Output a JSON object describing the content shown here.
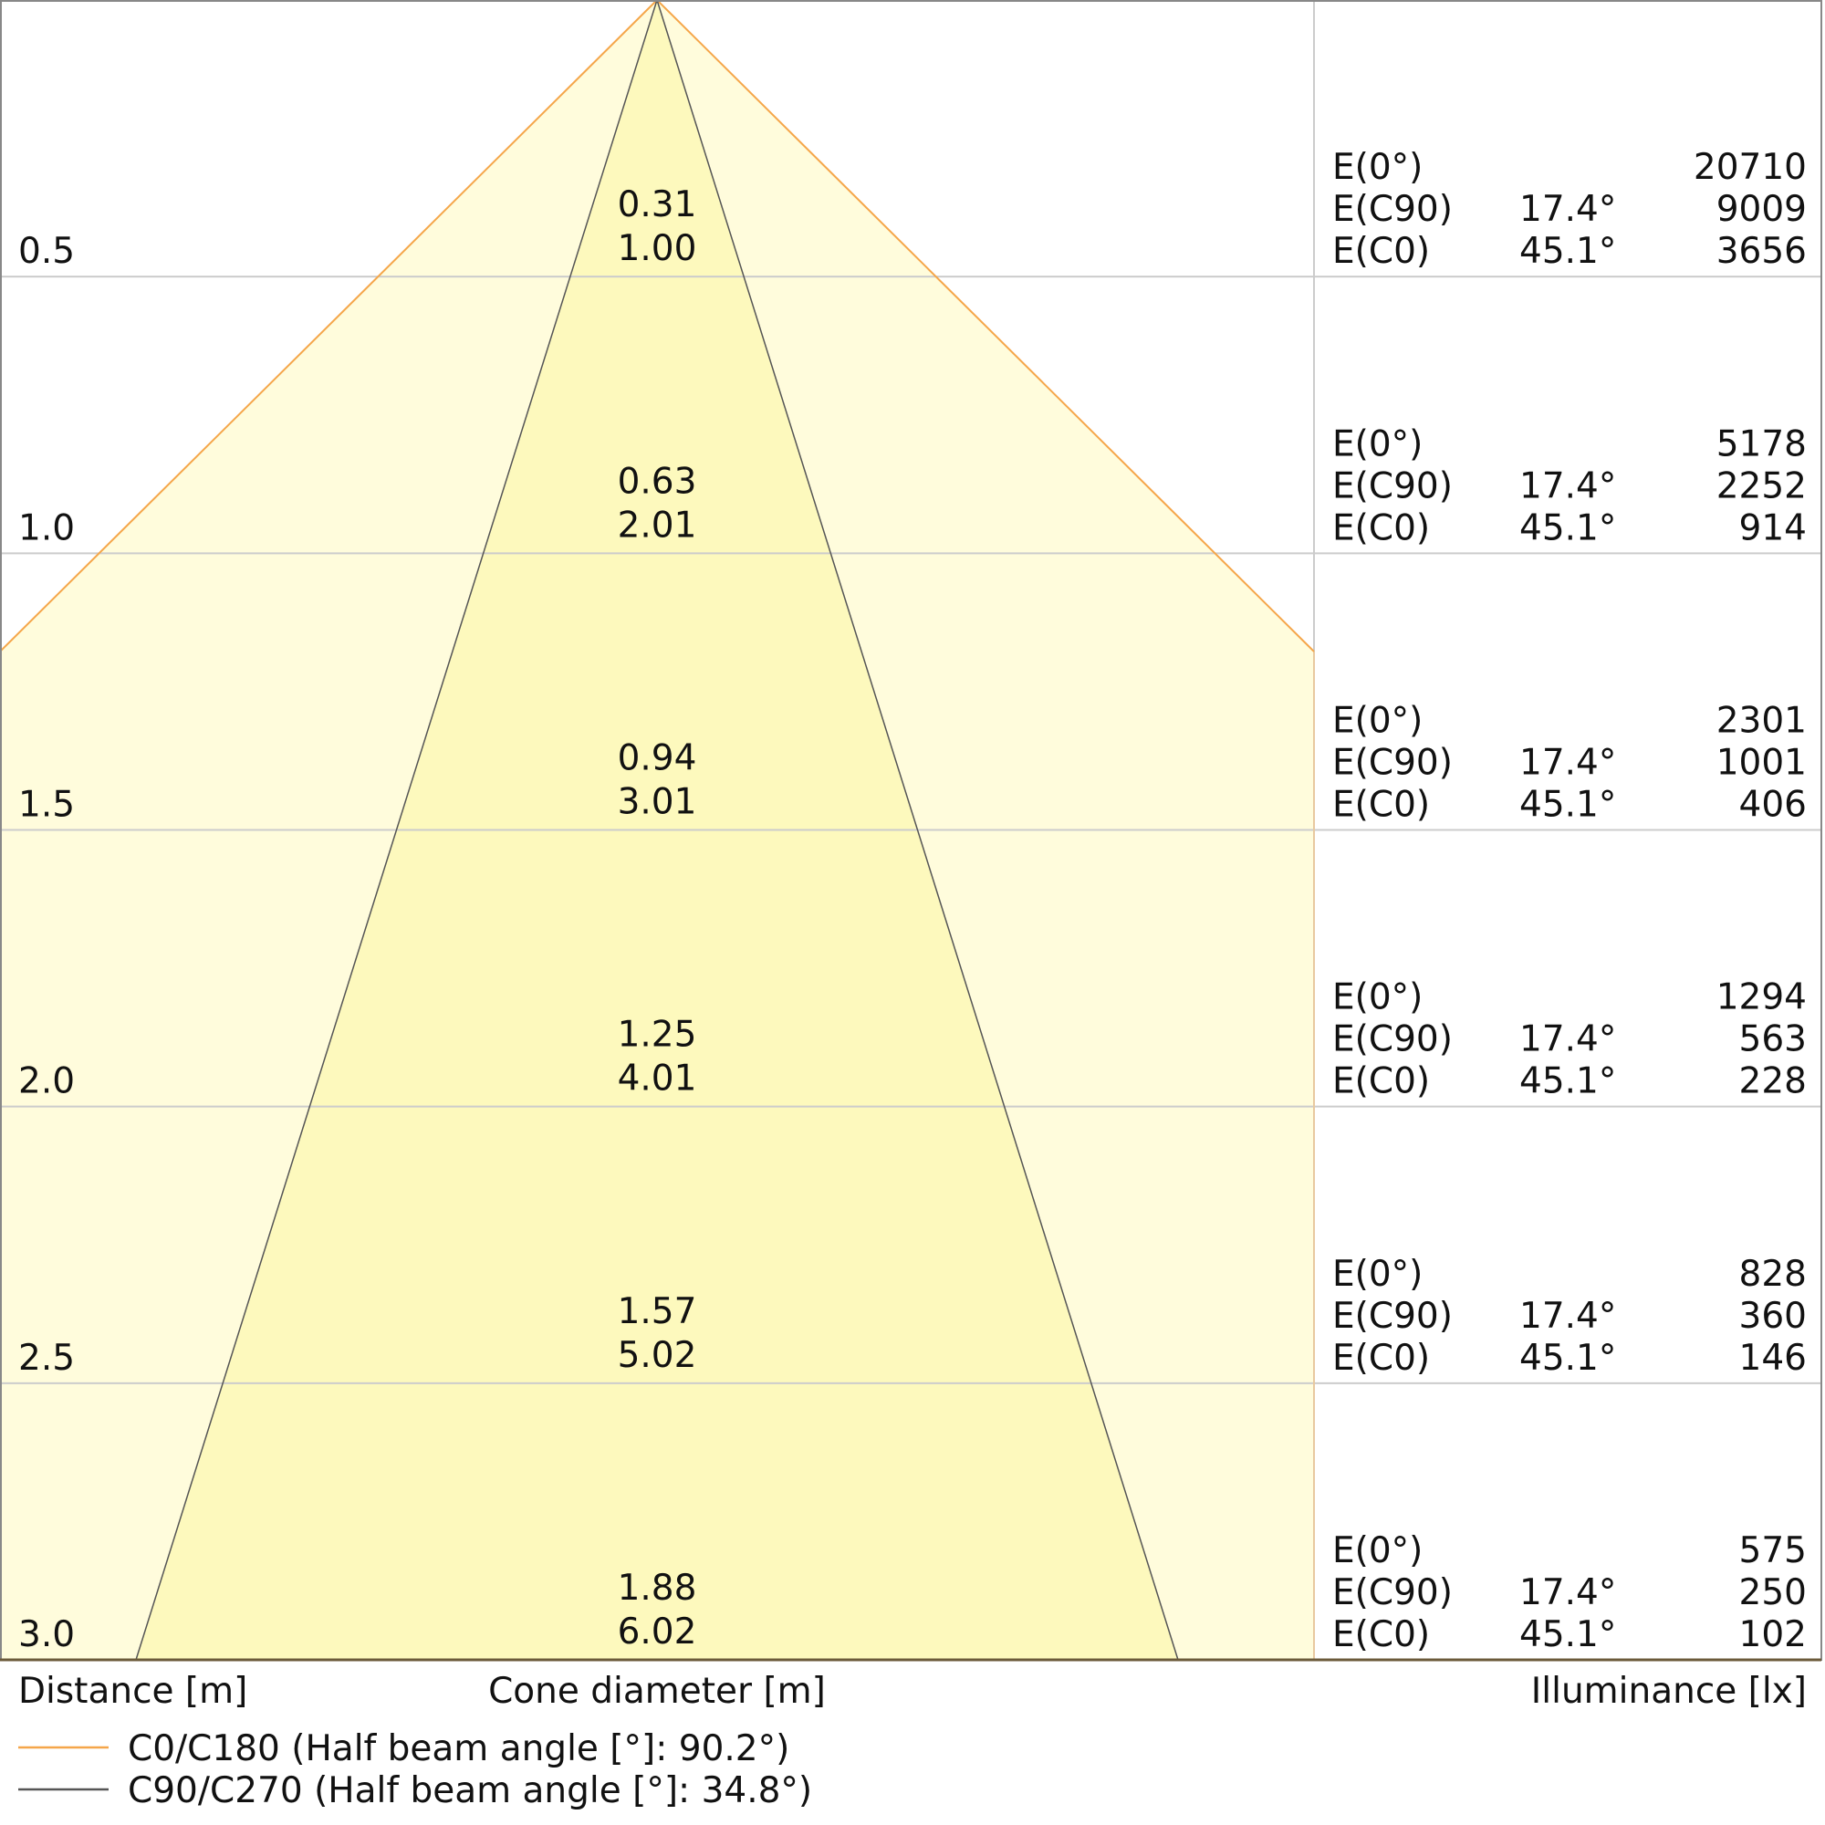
{
  "chart_data": {
    "type": "cone-diagram",
    "xlabel_left": "Distance [m]",
    "xlabel_center": "Cone diameter [m]",
    "xlabel_right": "Illuminance [lx]",
    "distance_range": [
      0,
      3.0
    ],
    "distances": [
      "0.5",
      "1.0",
      "1.5",
      "2.0",
      "2.5",
      "3.0"
    ],
    "cone_diameter_c90": [
      "0.31",
      "0.63",
      "0.94",
      "1.25",
      "1.57",
      "1.88"
    ],
    "cone_diameter_c0": [
      "1.00",
      "2.01",
      "3.01",
      "4.01",
      "5.02",
      "6.02"
    ],
    "illuminance": [
      {
        "e0": "20710",
        "ec90": "9009",
        "ec0": "3656"
      },
      {
        "e0": "5178",
        "ec90": "2252",
        "ec0": "914"
      },
      {
        "e0": "2301",
        "ec90": "1001",
        "ec0": "406"
      },
      {
        "e0": "1294",
        "ec90": "563",
        "ec0": "228"
      },
      {
        "e0": "828",
        "ec90": "360",
        "ec0": "146"
      },
      {
        "e0": "575",
        "ec90": "250",
        "ec0": "102"
      }
    ],
    "row_labels": {
      "e0": "E(0°)",
      "ec90": "E(C90)",
      "ec0": "E(C0)"
    },
    "angles": {
      "ec90": "17.4°",
      "ec0": "45.1°"
    },
    "series": [
      {
        "name": "C0/C180 (Half beam angle [°]: 90.2°)",
        "color": "#f5a64a"
      },
      {
        "name": "C90/C270 (Half beam angle [°]: 34.8°)",
        "color": "#555555"
      }
    ],
    "colors": {
      "outer_fill": "#fffcdc",
      "inner_fill": "#fdf9bd",
      "grid": "#cccccc"
    }
  }
}
